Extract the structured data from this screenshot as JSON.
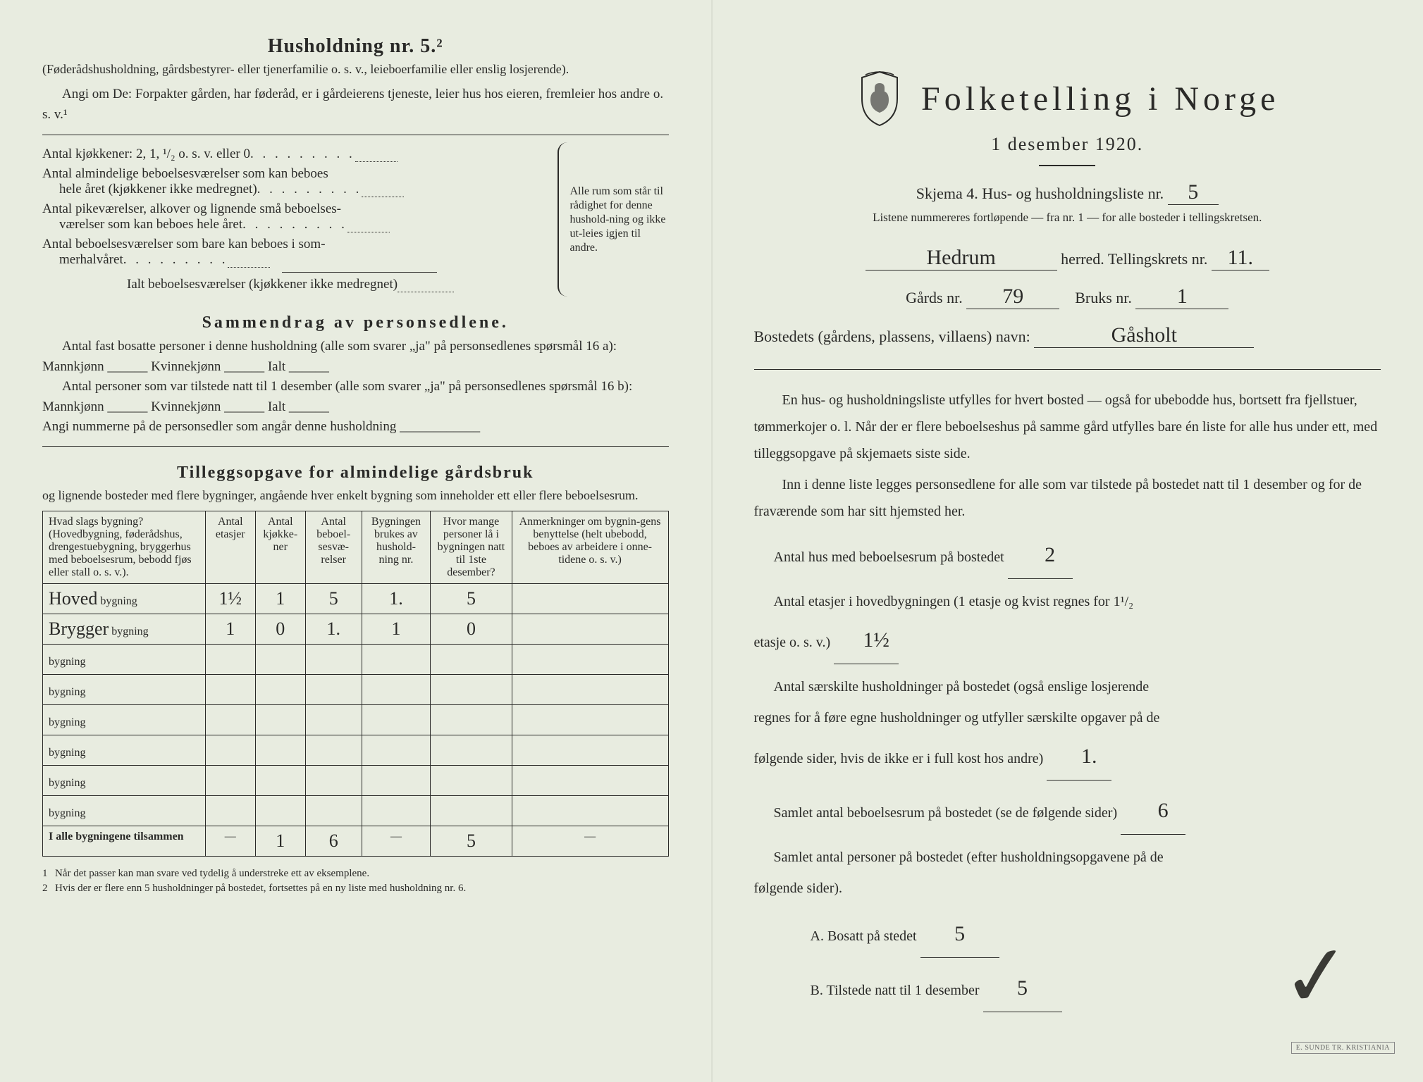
{
  "left": {
    "heading": "Husholdning nr. 5.²",
    "sub1": "(Føderådshusholdning, gårdsbestyrer- eller tjenerfamilie o. s. v., leieboerfamilie eller enslig losjerende).",
    "sub2": "Angi om De: Forpakter gården, har føderåd, er i gårdeierens tjeneste, leier hus hos eieren, fremleier hos andre o. s. v.¹",
    "lines": {
      "l1": "Antal kjøkkener: 2, 1, ¹/₂ o. s. v. eller 0",
      "l2a": "Antal almindelige beboelsesværelser som kan beboes",
      "l2b": "hele året (kjøkkener ikke medregnet)",
      "l3a": "Antal pikeværelser, alkover og lignende små beboelses-",
      "l3b": "værelser som kan beboes hele året",
      "l4a": "Antal beboelsesværelser som bare kan beboes i som-",
      "l4b": "merhalvåret",
      "l5": "Ialt beboelsesværelser (kjøkkener ikke medregnet)"
    },
    "brace_text": "Alle rum som står til rådighet for denne hushold-ning og ikke ut-leies igjen til andre.",
    "summary_title": "Sammendrag av personsedlene.",
    "summary_p1": "Antal fast bosatte personer i denne husholdning (alle som svarer „ja\" på personsedlenes spørsmål 16 a): Mannkjønn ______ Kvinnekjønn ______ Ialt ______",
    "summary_p2": "Antal personer som var tilstede natt til 1 desember (alle som svarer „ja\" på personsedlenes spørsmål 16 b): Mannkjønn ______ Kvinnekjønn ______ Ialt ______",
    "summary_p3": "Angi nummerne på de personsedler som angår denne husholdning ____________",
    "tillegg_title": "Tilleggsopgave for almindelige gårdsbruk",
    "tillegg_sub": "og lignende bosteder med flere bygninger, angående hver enkelt bygning som inneholder ett eller flere beboelsesrum.",
    "table": {
      "headers": [
        "Hvad slags bygning?\n(Hovedbygning, føderådshus, drengestuebygning, bryggerhus med beboelsesrum, bebodd fjøs eller stall o. s. v.).",
        "Antal etasjer",
        "Antal kjøkke-ner",
        "Antal beboel-sesvæ-relser",
        "Bygningen brukes av hushold-ning nr.",
        "Hvor mange personer lå i bygningen natt til 1ste desember?",
        "Anmerkninger om bygnin-gens benyttelse (helt ubebodd, beboes av arbeidere i onne-tidene o. s. v.)"
      ],
      "rows": [
        {
          "name": "Hoved",
          "suffix": "bygning",
          "c1": "1½",
          "c2": "1",
          "c3": "5",
          "c4": "1.",
          "c5": "5",
          "c6": ""
        },
        {
          "name": "Brygger",
          "suffix": "bygning",
          "c1": "1",
          "c2": "0",
          "c3": "1.",
          "c4": "1",
          "c5": "0",
          "c6": ""
        },
        {
          "name": "",
          "suffix": "bygning",
          "c1": "",
          "c2": "",
          "c3": "",
          "c4": "",
          "c5": "",
          "c6": ""
        },
        {
          "name": "",
          "suffix": "bygning",
          "c1": "",
          "c2": "",
          "c3": "",
          "c4": "",
          "c5": "",
          "c6": ""
        },
        {
          "name": "",
          "suffix": "bygning",
          "c1": "",
          "c2": "",
          "c3": "",
          "c4": "",
          "c5": "",
          "c6": ""
        },
        {
          "name": "",
          "suffix": "bygning",
          "c1": "",
          "c2": "",
          "c3": "",
          "c4": "",
          "c5": "",
          "c6": ""
        },
        {
          "name": "",
          "suffix": "bygning",
          "c1": "",
          "c2": "",
          "c3": "",
          "c4": "",
          "c5": "",
          "c6": ""
        },
        {
          "name": "",
          "suffix": "bygning",
          "c1": "",
          "c2": "",
          "c3": "",
          "c4": "",
          "c5": "",
          "c6": ""
        }
      ],
      "total_label": "I alle bygningene tilsammen",
      "totals": {
        "c1": "—",
        "c2": "1",
        "c3": "6",
        "c4": "—",
        "c5": "5",
        "c6": "—"
      }
    },
    "footnote1": "Når det passer kan man svare ved tydelig å understreke ett av eksemplene.",
    "footnote2": "Hvis der er flere enn 5 husholdninger på bostedet, fortsettes på en ny liste med husholdning nr. 6."
  },
  "right": {
    "title": "Folketelling i Norge",
    "date": "1 desember 1920.",
    "skjema": "Skjema 4.   Hus- og husholdningsliste nr.",
    "skjema_nr": "5",
    "listene": "Listene nummereres fortløpende — fra nr. 1 — for alle bosteder i tellingskretsen.",
    "herred_val": "Hedrum",
    "herred_lbl": "herred.   Tellingskrets nr.",
    "krets_nr": "11.",
    "gard_lbl": "Gårds nr.",
    "gard_nr": "79",
    "bruk_lbl": "Bruks nr.",
    "bruk_nr": "1",
    "bosted_lbl": "Bostedets (gårdens, plassens, villaens) navn:",
    "bosted_val": "Gåsholt",
    "p1": "En hus- og husholdningsliste utfylles for hvert bosted — også for ubebodde hus, bortsett fra fjellstuer, tømmerkojer o. l.  Når der er flere beboelseshus på samme gård utfylles bare én liste for alle hus under ett, med tilleggsopgave på skjemaets siste side.",
    "p2": "Inn i denne liste legges personsedlene for alle som var tilstede på bostedet natt til 1 desember og for de fraværende som har sitt hjemsted her.",
    "q1": "Antal hus med beboelsesrum på bostedet",
    "q1v": "2",
    "q2a": "Antal etasjer i hovedbygningen (1 etasje og kvist regnes for 1¹/₂",
    "q2b": "etasje o. s. v.)",
    "q2v": "1½",
    "q3a": "Antal særskilte husholdninger på bostedet (også enslige losjerende",
    "q3b": "regnes for å føre egne husholdninger og utfyller særskilte opgaver på de",
    "q3c": "følgende sider, hvis de ikke er i full kost hos andre)",
    "q3v": "1.",
    "q4": "Samlet antal beboelsesrum på bostedet (se de følgende sider)",
    "q4v": "6",
    "q5a": "Samlet antal personer på bostedet (efter husholdningsopgavene på de",
    "q5b": "følgende sider).",
    "q6": "A.  Bosatt på stedet",
    "q6v": "5",
    "q7": "B.  Tilstede natt til 1 desember",
    "q7v": "5"
  },
  "colors": {
    "paper": "#e8ece0",
    "ink": "#2a2a28",
    "handwriting": "#2a2a28"
  }
}
